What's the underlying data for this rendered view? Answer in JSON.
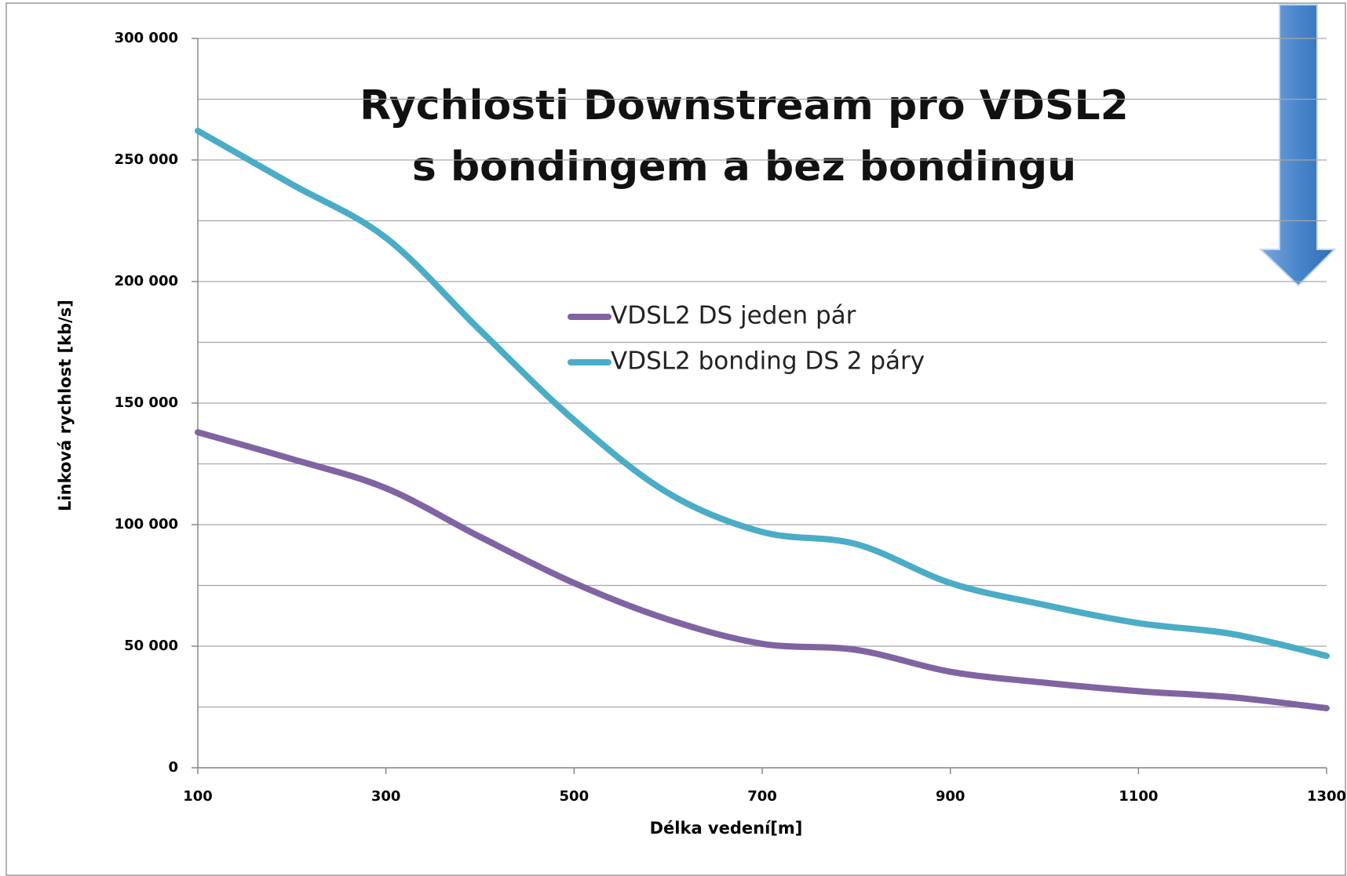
{
  "chart_data": {
    "type": "line",
    "title": [
      "Rychlosti Downstream pro VDSL2",
      "s bondingem a bez bondingu"
    ],
    "x_label": "Délka vedení[m]",
    "y_label": "Linková rychlost [kb/s]",
    "x": [
      100,
      200,
      300,
      400,
      500,
      600,
      700,
      800,
      900,
      1000,
      1100,
      1200,
      1300
    ],
    "series": [
      {
        "name": "VDSL2 DS jeden pár",
        "color": "#8064a2",
        "values": [
          138000,
          127000,
          115000,
          95000,
          76000,
          61000,
          51000,
          48500,
          39500,
          35000,
          31500,
          29000,
          24500
        ]
      },
      {
        "name": "VDSL2 bonding DS 2 páry",
        "color": "#4bacc6",
        "values": [
          262000,
          240000,
          218000,
          180000,
          143000,
          113000,
          97000,
          92000,
          76000,
          67000,
          59500,
          55000,
          46000
        ]
      }
    ],
    "xlim": [
      100,
      1300
    ],
    "xticks": [
      100,
      300,
      500,
      700,
      900,
      1100,
      1300
    ],
    "ylim": [
      0,
      300000
    ],
    "yticks": [
      0,
      {
        "value": 50000,
        "label": "50 000"
      },
      {
        "value": 100000,
        "label": "100 000"
      },
      {
        "value": 150000,
        "label": "150 000"
      },
      {
        "value": 200000,
        "label": "200 000"
      },
      {
        "value": 250000,
        "label": "250 000"
      },
      {
        "value": 300000,
        "label": "300 000"
      }
    ],
    "grid_lines": [
      0,
      25000,
      50000,
      75000,
      100000,
      125000,
      150000,
      175000,
      200000,
      225000,
      250000,
      275000,
      300000
    ],
    "grid": true,
    "smooth": true
  }
}
